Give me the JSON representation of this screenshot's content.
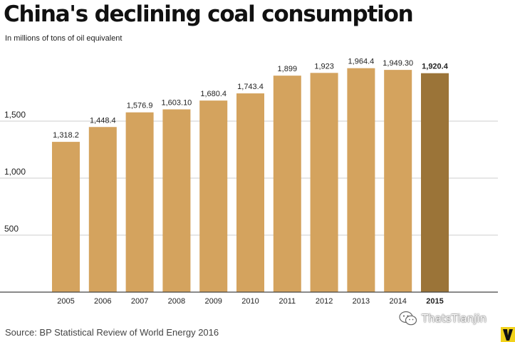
{
  "chart_data": {
    "type": "bar",
    "title": "China's declining coal consumption",
    "subtitle": "In millions of tons of oil equivalent",
    "categories": [
      "2005",
      "2006",
      "2007",
      "2008",
      "2009",
      "2010",
      "2011",
      "2012",
      "2013",
      "2014",
      "2015"
    ],
    "values": [
      1318.2,
      1448.4,
      1576.9,
      1603.1,
      1680.4,
      1743.4,
      1899,
      1923,
      1964.4,
      1949.3,
      1920.4
    ],
    "value_labels": [
      "1,318.2",
      "1,448.4",
      "1,576.9",
      "1,603.10",
      "1,680.4",
      "1,743.4",
      "1,899",
      "1,923",
      "1,964.4",
      "1,949.30",
      "1,920.4"
    ],
    "highlight_index": 10,
    "y_ticks": [
      500,
      1000,
      1500
    ],
    "y_tick_labels": [
      "500",
      "1,000",
      "1,500"
    ],
    "ylim": [
      0,
      2000
    ],
    "grid": true,
    "colors": {
      "bar": "#d4a35e",
      "highlight": "#9b7438",
      "grid": "#cccccc",
      "axis": "#444444"
    }
  },
  "source": "Source: BP Statistical Review of World Energy 2016",
  "watermark": {
    "icon": "wechat-icon",
    "text": "ThatsTianjin"
  },
  "logo": {
    "icon": "vox-logo-icon"
  }
}
